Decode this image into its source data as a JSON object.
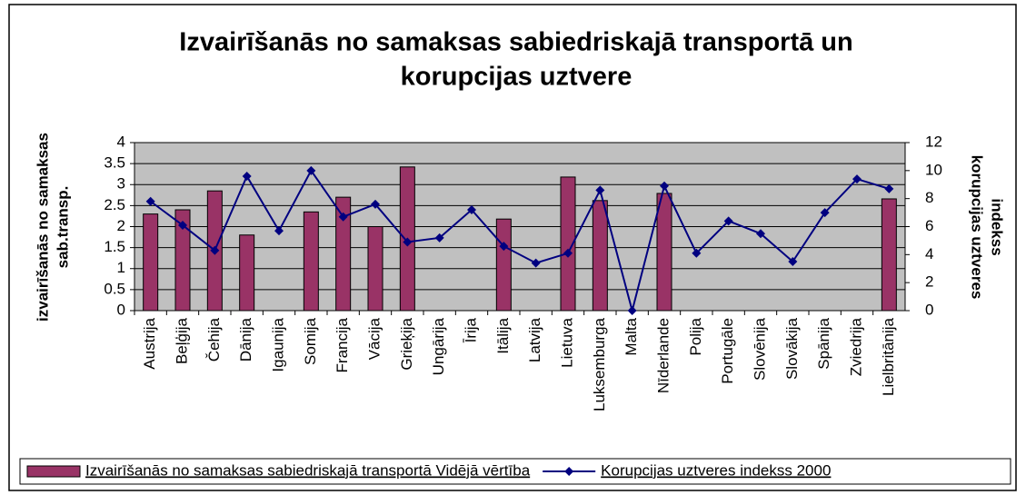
{
  "chart_data": {
    "type": "bar_line",
    "title": [
      "Izvairīšanās no samaksas sabiedriskajā transportā un",
      "korupcijas uztvere"
    ],
    "ylabel": [
      "izvairīšanās no samaksas",
      "sab.transp."
    ],
    "y2label": [
      "korupcijas uztveres",
      "indekss"
    ],
    "categories": [
      "Austrija",
      "Beļģija",
      "Čehija",
      "Dānija",
      "Igaunija",
      "Somija",
      "Francija",
      "Vācija",
      "Grieķija",
      "Ungārija",
      "Īrija",
      "Itālija",
      "Latvija",
      "Lietuva",
      "Luksemburga",
      "Malta",
      "Nīderlande",
      "Polija",
      "Portugāle",
      "Slovēnija",
      "Slovākija",
      "Spānija",
      "Zviedrija",
      "Lielbritānija"
    ],
    "series": [
      {
        "name": "Izvairīšanās no samaksas sabiedriskajā transportā Vidējā vērtība",
        "color": "#993366",
        "type": "bar",
        "values": [
          2.3,
          2.4,
          2.85,
          1.8,
          null,
          2.35,
          2.7,
          2.0,
          3.42,
          null,
          null,
          2.18,
          null,
          3.18,
          2.62,
          null,
          2.79,
          null,
          null,
          null,
          null,
          null,
          null,
          2.66
        ]
      },
      {
        "name": "Korupcijas uztveres indekss 2000",
        "color": "#000080",
        "type": "line",
        "axis": "y2",
        "values": [
          7.8,
          6.1,
          4.3,
          9.6,
          5.7,
          10.0,
          6.7,
          7.6,
          4.9,
          5.2,
          7.2,
          4.6,
          3.4,
          4.1,
          8.6,
          0,
          8.9,
          4.1,
          6.4,
          5.5,
          3.5,
          7.0,
          9.4,
          8.7
        ]
      }
    ],
    "ylim": [
      0,
      4
    ],
    "yticks": [
      0,
      0.5,
      1,
      1.5,
      2,
      2.5,
      3,
      3.5,
      4
    ],
    "y2lim": [
      0,
      12
    ],
    "y2ticks": [
      0,
      2,
      4,
      6,
      8,
      10,
      12
    ],
    "grid": true,
    "legend": "bottom"
  }
}
